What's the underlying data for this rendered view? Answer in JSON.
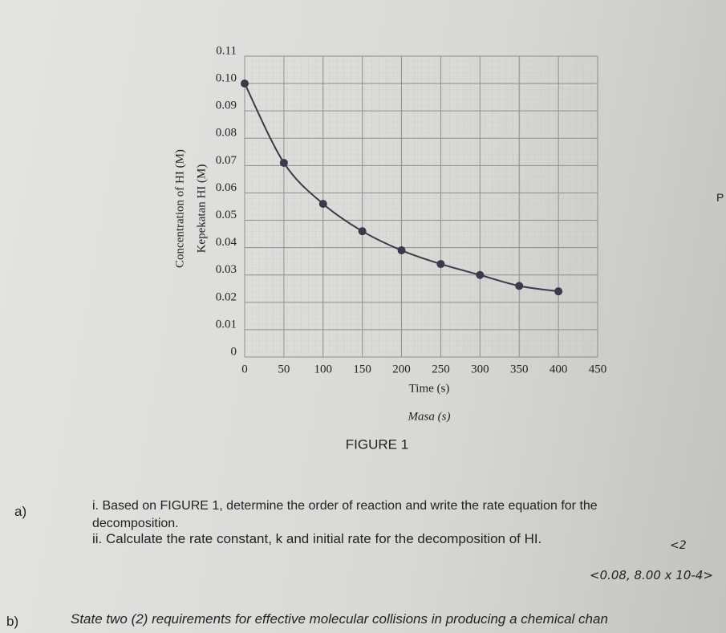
{
  "chart_data": {
    "type": "line",
    "y_labels": [
      "Concentration of HI (M)",
      "Kepekatan HI (M)"
    ],
    "x_labels": [
      "Time (s)",
      "Masa (s)"
    ],
    "caption": "FIGURE 1",
    "x": [
      0,
      50,
      100,
      150,
      200,
      250,
      300,
      350,
      400
    ],
    "series": [
      {
        "color": "#3a3a4a",
        "values": [
          0.1,
          0.071,
          0.056,
          0.046,
          0.039,
          0.034,
          0.03,
          0.026,
          0.024
        ]
      }
    ],
    "xlim": [
      0,
      450
    ],
    "xticks": [
      0,
      50,
      100,
      150,
      200,
      250,
      300,
      350,
      400,
      450
    ],
    "ylim": [
      0,
      0.11
    ],
    "yticks": [
      0,
      0.01,
      0.02,
      0.03,
      0.04,
      0.05,
      0.06,
      0.07,
      0.08,
      0.09,
      {
        "value": 0.1,
        "label": "0.10"
      },
      0.11
    ],
    "grid": true
  },
  "questions": {
    "a": {
      "label": "a)",
      "parts": [
        "i. Based on FIGURE 1, determine the order of reaction and write the rate equation for the decomposition.",
        "ii. Calculate the rate constant, k and initial rate for the decomposition of HI."
      ],
      "notes": [
        "<2",
        "<0.08, 8.00 x 10-4>"
      ]
    },
    "b": {
      "label": "b)",
      "text": "State two (2) requirements for effective molecular collisions in producing a chemical chan"
    }
  },
  "margin_text": "P"
}
